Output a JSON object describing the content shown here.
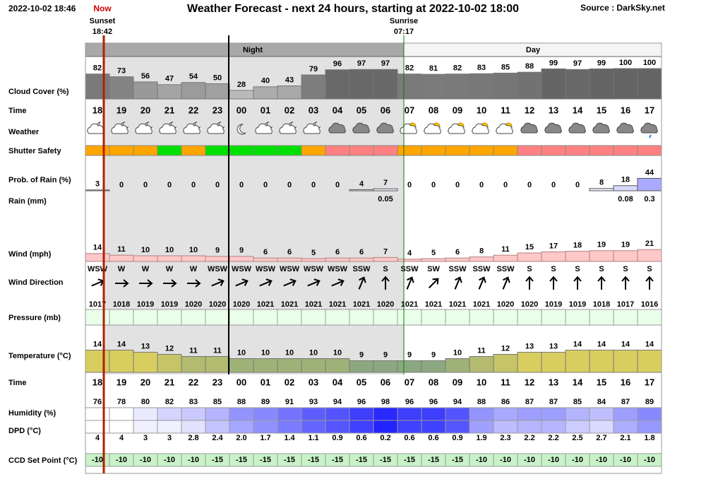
{
  "header": {
    "timestamp": "2022-10-02 18:46",
    "now": "Now",
    "title": "Weather Forecast - next 24 hours, starting at 2022-10-02 18:00",
    "source": "Source : DarkSky.net"
  },
  "sun": {
    "sunset_label": "Sunset",
    "sunset_time": "18:42",
    "sunrise_label": "Sunrise",
    "sunrise_time": "07:17"
  },
  "bands": {
    "night": "Night",
    "day": "Day"
  },
  "row_labels": {
    "cloud": "Cloud Cover (%)",
    "time": "Time",
    "weather": "Weather",
    "shutter": "Shutter Safety",
    "prob_rain": "Prob. of Rain (%)",
    "rain": "Rain (mm)",
    "wind": "Wind (mph)",
    "wind_dir": "Wind Direction",
    "pressure": "Pressure (mb)",
    "temperature": "Temperature (°C)",
    "time2": "Time",
    "humidity": "Humidity (%)",
    "dpd": "DPD (°C)",
    "ccd": "CCD Set Point (°C)"
  },
  "hours": [
    "18",
    "19",
    "20",
    "21",
    "22",
    "23",
    "00",
    "01",
    "02",
    "03",
    "04",
    "05",
    "06",
    "07",
    "08",
    "09",
    "10",
    "11",
    "12",
    "13",
    "14",
    "15",
    "16",
    "17"
  ],
  "cloud_cover": [
    82,
    73,
    56,
    47,
    54,
    50,
    28,
    40,
    43,
    79,
    96,
    97,
    97,
    82,
    81,
    82,
    83,
    85,
    88,
    99,
    97,
    99,
    100,
    100
  ],
  "shutter_safety": [
    "#ffa500",
    "#ffa500",
    "#ffa500",
    "#00e000",
    "#ffa500",
    "#00e000",
    "#00e000",
    "#00e000",
    "#00e000",
    "#ffa500",
    "#ff8080",
    "#ff8080",
    "#ff8080",
    "#ffa500",
    "#ffa500",
    "#ffa500",
    "#ffa500",
    "#ffa500",
    "#ff8080",
    "#ff8080",
    "#ff8080",
    "#ff8080",
    "#ff8080",
    "#ff8080"
  ],
  "prob_rain": [
    3,
    0,
    0,
    0,
    0,
    0,
    0,
    0,
    0,
    0,
    0,
    4,
    7,
    0,
    0,
    0,
    0,
    0,
    0,
    0,
    0,
    8,
    18,
    44
  ],
  "rain": [
    null,
    null,
    null,
    null,
    null,
    null,
    null,
    null,
    null,
    null,
    null,
    null,
    0.05,
    null,
    null,
    null,
    null,
    null,
    null,
    null,
    null,
    null,
    0.08,
    0.3
  ],
  "wind": [
    14,
    11,
    10,
    10,
    10,
    9,
    9,
    6,
    6,
    5,
    6,
    6,
    7,
    4,
    5,
    6,
    8,
    11,
    15,
    17,
    18,
    19,
    19,
    21
  ],
  "wind_dir": [
    "WSW",
    "W",
    "W",
    "W",
    "W",
    "WSW",
    "WSW",
    "WSW",
    "WSW",
    "WSW",
    "WSW",
    "SSW",
    "S",
    "SSW",
    "SW",
    "SSW",
    "SSW",
    "SSW",
    "S",
    "S",
    "S",
    "S",
    "S",
    "S"
  ],
  "pressure": [
    1017,
    1018,
    1019,
    1019,
    1020,
    1020,
    1020,
    1021,
    1021,
    1021,
    1021,
    1021,
    1020,
    1021,
    1021,
    1021,
    1021,
    1020,
    1020,
    1019,
    1019,
    1018,
    1017,
    1016
  ],
  "temperature": [
    14,
    14,
    13,
    12,
    11,
    11,
    10,
    10,
    10,
    10,
    10,
    9,
    9,
    9,
    9,
    10,
    11,
    12,
    13,
    13,
    14,
    14,
    14,
    14
  ],
  "humidity": [
    76,
    78,
    80,
    82,
    83,
    85,
    88,
    89,
    91,
    93,
    94,
    96,
    98,
    96,
    96,
    94,
    88,
    86,
    87,
    87,
    85,
    84,
    87,
    89
  ],
  "dpd": [
    "4",
    "4",
    "3",
    "3",
    "2.8",
    "2.4",
    "2.0",
    "1.7",
    "1.4",
    "1.1",
    "0.9",
    "0.6",
    "0.2",
    "0.6",
    "0.6",
    "0.9",
    "1.9",
    "2.3",
    "2.2",
    "2.2",
    "2.5",
    "2.7",
    "2.1",
    "1.8"
  ],
  "ccd": [
    -10,
    -10,
    -10,
    -10,
    -10,
    -15,
    -15,
    -15,
    -15,
    -15,
    -15,
    -15,
    -15,
    -15,
    -15,
    -15,
    -10,
    -10,
    -10,
    -10,
    -10,
    -10,
    -10,
    -10
  ]
}
